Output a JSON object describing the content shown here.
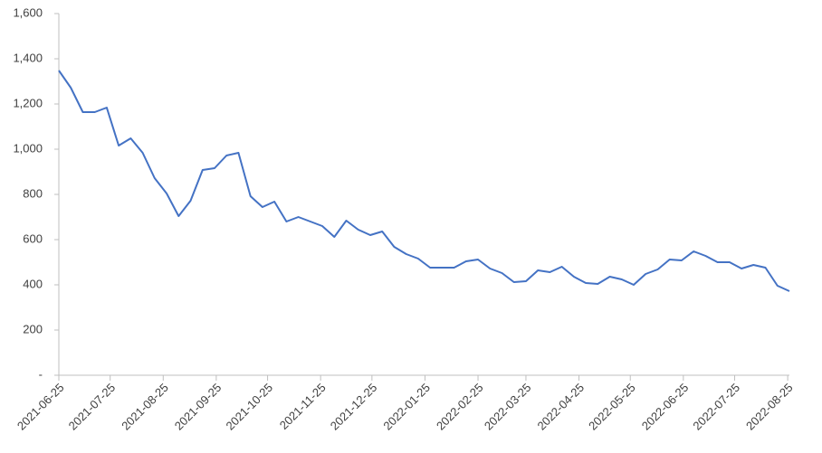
{
  "chart_data": {
    "type": "line",
    "x": [
      "2021-06-25",
      "2021-07-02",
      "2021-07-09",
      "2021-07-16",
      "2021-07-23",
      "2021-07-30",
      "2021-08-06",
      "2021-08-13",
      "2021-08-20",
      "2021-08-27",
      "2021-09-03",
      "2021-09-10",
      "2021-09-17",
      "2021-09-24",
      "2021-10-01",
      "2021-10-08",
      "2021-10-15",
      "2021-10-22",
      "2021-10-29",
      "2021-11-05",
      "2021-11-12",
      "2021-11-19",
      "2021-11-26",
      "2021-12-03",
      "2021-12-10",
      "2021-12-17",
      "2021-12-24",
      "2021-12-31",
      "2022-01-07",
      "2022-01-14",
      "2022-01-21",
      "2022-01-28",
      "2022-02-04",
      "2022-02-11",
      "2022-02-18",
      "2022-02-25",
      "2022-03-04",
      "2022-03-11",
      "2022-03-18",
      "2022-03-25",
      "2022-04-01",
      "2022-04-08",
      "2022-04-15",
      "2022-04-22",
      "2022-04-29",
      "2022-05-06",
      "2022-05-13",
      "2022-05-20",
      "2022-05-27",
      "2022-06-03",
      "2022-06-10",
      "2022-06-17",
      "2022-06-24",
      "2022-07-01",
      "2022-07-08",
      "2022-07-15",
      "2022-07-22",
      "2022-07-29",
      "2022-08-05",
      "2022-08-12",
      "2022-08-19",
      "2022-08-26"
    ],
    "series": [
      {
        "color": "#4472c4",
        "values": [
          1348,
          1272,
          1164,
          1164,
          1184,
          1016,
          1048,
          984,
          872,
          804,
          704,
          772,
          908,
          916,
          972,
          984,
          792,
          744,
          768,
          680,
          700,
          680,
          660,
          612,
          684,
          644,
          620,
          636,
          568,
          536,
          516,
          476,
          476,
          476,
          504,
          512,
          472,
          452,
          412,
          416,
          464,
          456,
          480,
          436,
          408,
          404,
          436,
          424,
          400,
          448,
          468,
          512,
          508,
          548,
          528,
          500,
          500,
          472,
          488,
          476,
          396,
          372
        ]
      }
    ],
    "xlim": [
      "2021-06-25",
      "2022-08-26"
    ],
    "xticks": [
      "2021-06-25",
      "2021-07-25",
      "2021-08-25",
      "2021-09-25",
      "2021-10-25",
      "2021-11-25",
      "2021-12-25",
      "2022-01-25",
      "2022-02-25",
      "2022-03-25",
      "2022-04-25",
      "2022-05-25",
      "2022-06-25",
      "2022-07-25",
      "2022-08-25"
    ],
    "ylim": [
      0,
      1600
    ],
    "yticks": [
      {
        "value": 0,
        "label": "-"
      },
      200,
      400,
      600,
      800,
      {
        "value": 1000,
        "label": "1,000"
      },
      {
        "value": 1200,
        "label": "1,200"
      },
      {
        "value": 1400,
        "label": "1,400"
      },
      {
        "value": 1600,
        "label": "1,600"
      }
    ],
    "grid": false
  }
}
